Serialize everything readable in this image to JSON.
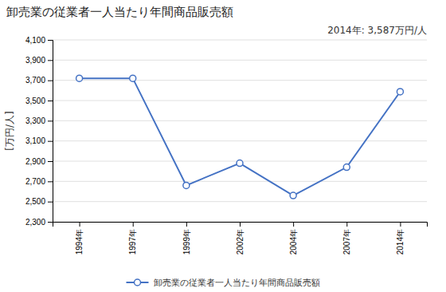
{
  "chart_data": {
    "type": "line",
    "title": "卸売業の従業者一人当たり年間商品販売額",
    "ylabel": "[万円/人]",
    "annotation": "2014年: 3,587万円/人",
    "categories": [
      "1994年",
      "1997年",
      "1999年",
      "2002年",
      "2004年",
      "2007年",
      "2014年"
    ],
    "series": [
      {
        "name": "卸売業の従業者一人当たり年間商品販売額",
        "color": "#4472C4",
        "marker": "circle",
        "values": [
          3720,
          3720,
          2660,
          2880,
          2560,
          2840,
          3587
        ]
      }
    ],
    "ylim": [
      2300,
      4100
    ],
    "yticks": [
      {
        "value": 2300,
        "label": "2,300"
      },
      {
        "value": 2500,
        "label": "2,500"
      },
      {
        "value": 2700,
        "label": "2,700"
      },
      {
        "value": 2900,
        "label": "2,900"
      },
      {
        "value": 3100,
        "label": "3,100"
      },
      {
        "value": 3300,
        "label": "3,300"
      },
      {
        "value": 3500,
        "label": "3,500"
      },
      {
        "value": 3700,
        "label": "3,700"
      },
      {
        "value": 3900,
        "label": "3,900"
      },
      {
        "value": 4100,
        "label": "4,100"
      }
    ],
    "grid": true,
    "legend": "bottom"
  }
}
